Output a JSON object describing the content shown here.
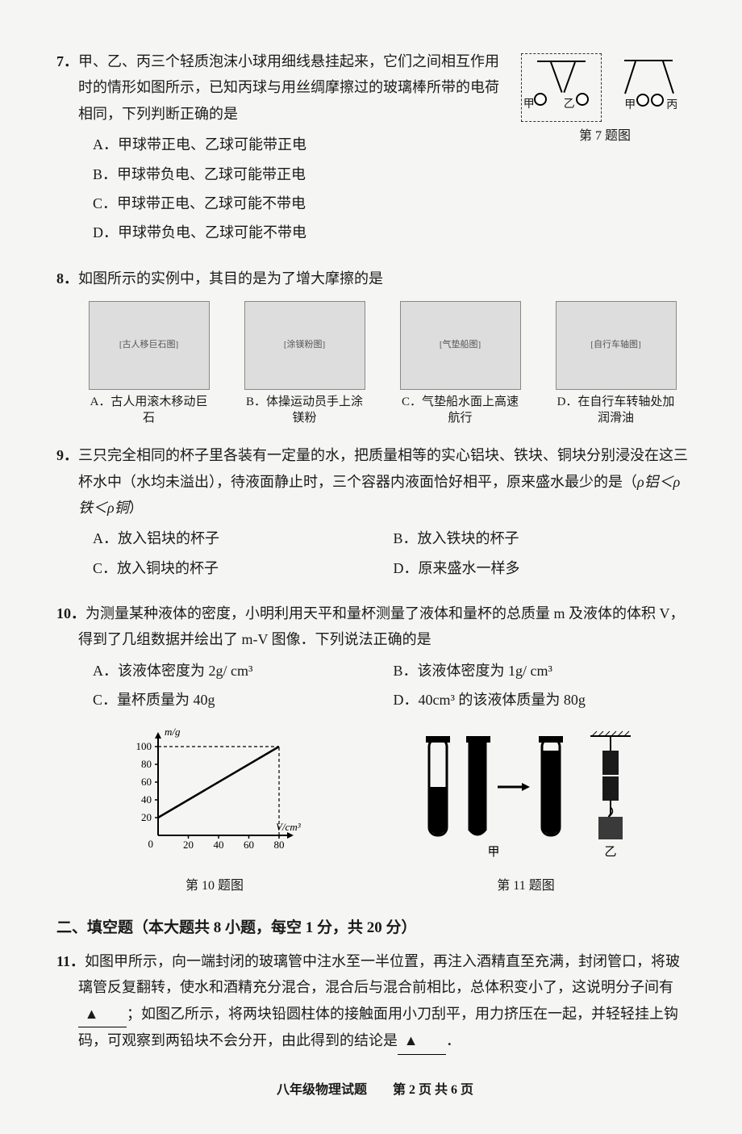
{
  "q7": {
    "number": "7．",
    "stem": "甲、乙、丙三个轻质泡沫小球用细线悬挂起来，它们之间相互作用时的情形如图所示，已知丙球与用丝绸摩擦过的玻璃棒所带的电荷相同，下列判断正确的是",
    "options": [
      "A．甲球带正电、乙球可能带正电",
      "B．甲球带负电、乙球可能带正电",
      "C．甲球带正电、乙球可能不带电",
      "D．甲球带负电、乙球可能不带电"
    ],
    "caption": "第 7 题图",
    "labels": {
      "jia": "甲",
      "yi": "乙",
      "bing": "丙"
    }
  },
  "q8": {
    "number": "8．",
    "stem": "如图所示的实例中，其目的是为了增大摩擦的是",
    "items": [
      {
        "letter": "A．",
        "label": "古人用滚木移动巨石",
        "img_hint": "[古人移巨石图]"
      },
      {
        "letter": "B．",
        "label": "体操运动员手上涂镁粉",
        "img_hint": "[涂镁粉图]"
      },
      {
        "letter": "C．",
        "label": "气垫船水面上高速航行",
        "img_hint": "[气垫船图]"
      },
      {
        "letter": "D．",
        "label": "在自行车转轴处加润滑油",
        "img_hint": "[自行车轴图]"
      }
    ]
  },
  "q9": {
    "number": "9．",
    "stem_part1": "三只完全相同的杯子里各装有一定量的水，把质量相等的实心铝块、铁块、铜块分别浸没在这三杯水中（水均未溢出），待液面静止时，三个容器内液面恰好相平，原来盛水最少的是（",
    "stem_subtext": "ρ铝＜ρ铁＜ρ铜",
    "stem_part2": "）",
    "options": [
      "A．放入铝块的杯子",
      "B．放入铁块的杯子",
      "C．放入铜块的杯子",
      "D．原来盛水一样多"
    ]
  },
  "q10": {
    "number": "10．",
    "stem": "为测量某种液体的密度，小明利用天平和量杯测量了液体和量杯的总质量 m 及液体的体积 V，得到了几组数据并绘出了 m-V 图像．下列说法正确的是",
    "options": [
      "A．该液体密度为 2g/ cm³",
      "B．该液体密度为 1g/ cm³",
      "C．量杯质量为 40g",
      "D．40cm³ 的该液体质量为 80g"
    ],
    "graph": {
      "y_label": "m/g",
      "x_label": "V/cm³",
      "y_ticks": [
        20,
        40,
        60,
        80,
        100
      ],
      "x_ticks": [
        0,
        20,
        40,
        60,
        80
      ],
      "line_points": [
        [
          0,
          20
        ],
        [
          80,
          100
        ]
      ],
      "dash_x": 80,
      "dash_y": 100,
      "bg_color": "#f5f5f3",
      "line_color": "#000000",
      "axis_color": "#000000",
      "font_size": 13
    },
    "caption": "第 10 题图"
  },
  "q11": {
    "caption": "第 11 题图",
    "labels": {
      "jia": "甲",
      "yi": "乙"
    }
  },
  "section2": {
    "header": "二、填空题（本大题共 8 小题，每空 1 分，共 20 分）",
    "q11_number": "11．",
    "q11_text_1": "如图甲所示，向一端封闭的玻璃管中注水至一半位置，再注入酒精直至充满，封闭管口，将玻璃管反复翻转，使水和酒精充分混合，混合后与混合前相比，总体积变小了，这说明分子间有",
    "blank_marker": "▲",
    "q11_text_2": "；如图乙所示，将两块铅圆柱体的接触面用小刀刮平，用力挤压在一起，并轻轻挂上钩码，可观察到两铅块不会分开，由此得到的结论是",
    "q11_text_3": "．"
  },
  "footer": "八年级物理试题　　第 2 页 共 6 页"
}
